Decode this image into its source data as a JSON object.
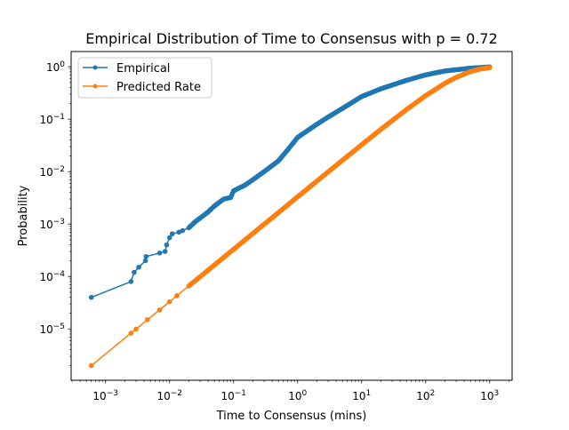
{
  "chart_data": {
    "type": "line",
    "title": "Empirical Distribution of Time to Consensus with p = 0.72",
    "xlabel": "Time to Consensus (mins)",
    "ylabel": "Probability",
    "xscale": "log",
    "yscale": "log",
    "xlim": [
      0.00029,
      2240
    ],
    "ylim": [
      1.05e-06,
      1.95
    ],
    "xticks": [
      {
        "v": 0.001,
        "e": "−3"
      },
      {
        "v": 0.01,
        "e": "−2"
      },
      {
        "v": 0.1,
        "e": "−1"
      },
      {
        "v": 1,
        "e": "0"
      },
      {
        "v": 10,
        "e": "1"
      },
      {
        "v": 100,
        "e": "2"
      },
      {
        "v": 1000,
        "e": "3"
      }
    ],
    "yticks": [
      {
        "v": 1,
        "e": "0"
      },
      {
        "v": 0.1,
        "e": "−1"
      },
      {
        "v": 0.01,
        "e": "−2"
      },
      {
        "v": 0.001,
        "e": "−3"
      },
      {
        "v": 0.0001,
        "e": "−4"
      },
      {
        "v": 1e-05,
        "e": "−5"
      }
    ],
    "tick_base": "10",
    "grid": false,
    "legend_position": "top-left",
    "series": [
      {
        "name": "Empirical",
        "color": "#1f77b4",
        "x": [
          0.0006,
          0.0025,
          0.0028,
          0.0033,
          0.0042,
          0.0043,
          0.007,
          0.0085,
          0.009,
          0.01,
          0.011,
          0.014,
          0.016,
          0.02,
          0.025,
          0.03,
          0.04,
          0.05,
          0.07,
          0.09,
          0.1,
          0.15,
          0.2,
          0.3,
          0.5,
          0.7,
          1,
          2,
          3,
          5,
          10,
          20,
          50,
          100,
          200,
          500,
          1000
        ],
        "y": [
          4e-05,
          8e-05,
          0.00012,
          0.00015,
          0.0002,
          0.00024,
          0.00028,
          0.0003,
          0.0004,
          0.00055,
          0.00065,
          0.0007,
          0.00075,
          0.00085,
          0.0011,
          0.0013,
          0.0017,
          0.0022,
          0.003,
          0.0032,
          0.0043,
          0.0055,
          0.007,
          0.01,
          0.016,
          0.026,
          0.045,
          0.08,
          0.11,
          0.16,
          0.27,
          0.38,
          0.55,
          0.7,
          0.83,
          0.94,
          0.99
        ]
      },
      {
        "name": "Predicted Rate",
        "color": "#ff7f0e",
        "x": [
          0.0006,
          0.0025,
          0.003,
          0.0045,
          0.007,
          0.01,
          0.013,
          0.02,
          0.03,
          0.05,
          0.1,
          0.2,
          0.5,
          1,
          2,
          5,
          10,
          20,
          50,
          100,
          200,
          300,
          500,
          700,
          1000
        ],
        "y": [
          2e-06,
          8.3e-06,
          9.9e-06,
          1.5e-05,
          2.3e-05,
          3.3e-05,
          4.3e-05,
          6.6e-05,
          9.9e-05,
          0.000165,
          0.00033,
          0.00066,
          0.00165,
          0.0033,
          0.0066,
          0.0164,
          0.0325,
          0.064,
          0.152,
          0.281,
          0.483,
          0.628,
          0.808,
          0.901,
          0.963
        ]
      }
    ]
  }
}
